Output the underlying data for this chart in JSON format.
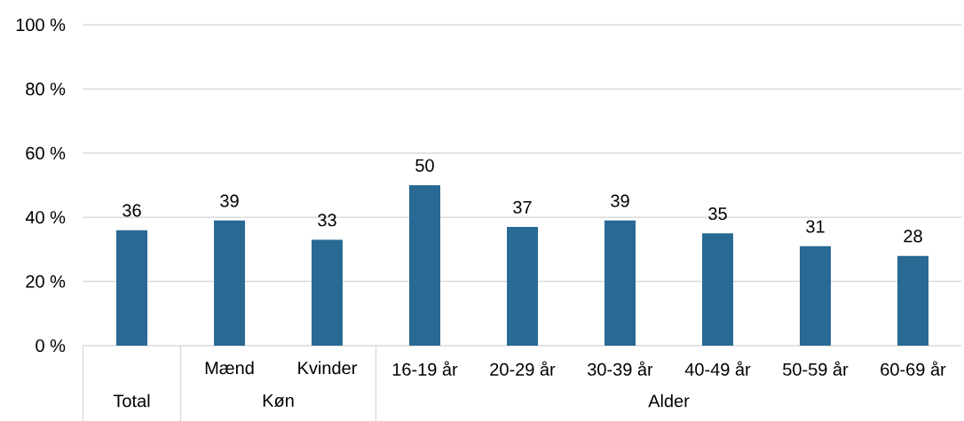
{
  "chart_data": {
    "type": "bar",
    "categories": [
      null,
      "Mænd",
      "Kvinder",
      "16-19 år",
      "20-29 år",
      "30-39 år",
      "40-49 år",
      "50-59 år",
      "60-69 år"
    ],
    "values": [
      36,
      39,
      33,
      50,
      37,
      39,
      35,
      31,
      28
    ],
    "color": "#286a94",
    "ylim": [
      0,
      100
    ],
    "yticks": [
      {
        "value": 0,
        "label": "0 %"
      },
      {
        "value": 20,
        "label": "20 %"
      },
      {
        "value": 40,
        "label": "40 %"
      },
      {
        "value": 60,
        "label": "60 %"
      },
      {
        "value": 80,
        "label": "80 %"
      },
      {
        "value": 100,
        "label": "100 %"
      }
    ],
    "grid": "y",
    "data_labels": true,
    "annotations": [
      "Total",
      "Køn",
      "Alder"
    ]
  }
}
